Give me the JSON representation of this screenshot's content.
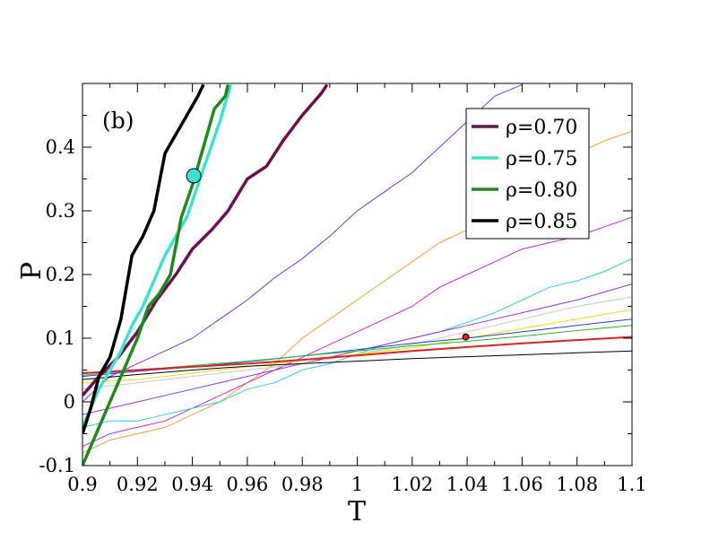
{
  "chart_data": {
    "type": "line",
    "panel_label": "(b)",
    "xlabel": "T",
    "ylabel": "P",
    "xlim": [
      0.9,
      1.1
    ],
    "ylim": [
      -0.1,
      0.5
    ],
    "x_ticks": [
      0.9,
      0.92,
      0.94,
      0.96,
      0.98,
      1.0,
      1.02,
      1.04,
      1.06,
      1.08,
      1.1
    ],
    "x_tick_labels": [
      "0.9",
      "0.92",
      "0.94",
      "0.96",
      "0.98",
      "1",
      "1.02",
      "1.04",
      "1.06",
      "1.08",
      "1.1"
    ],
    "y_ticks": [
      -0.1,
      0,
      0.1,
      0.2,
      0.3,
      0.4
    ],
    "y_tick_labels": [
      "-0.1",
      "0",
      "0.1",
      "0.2",
      "0.3",
      "0.4"
    ],
    "grid": false,
    "legend_position": "top-right",
    "series": [
      {
        "name": "ρ=0.70",
        "color": "#6b0f4f",
        "legend": true,
        "width": 3.5,
        "x": [
          0.9,
          0.906,
          0.913,
          0.92,
          0.927,
          0.934,
          0.94,
          0.947,
          0.953,
          0.96,
          0.967,
          0.973,
          0.98,
          0.987,
          0.989
        ],
        "y": [
          0.01,
          0.04,
          0.07,
          0.11,
          0.16,
          0.2,
          0.24,
          0.27,
          0.3,
          0.35,
          0.37,
          0.41,
          0.45,
          0.485,
          0.498
        ]
      },
      {
        "name": "ρ=0.75",
        "color": "#40e0d0",
        "legend": true,
        "width": 3.5,
        "x": [
          0.9,
          0.903,
          0.906,
          0.91,
          0.914,
          0.918,
          0.922,
          0.926,
          0.93,
          0.934,
          0.938,
          0.942,
          0.946,
          0.95,
          0.954
        ],
        "y": [
          -0.04,
          -0.01,
          0.02,
          0.05,
          0.08,
          0.12,
          0.15,
          0.19,
          0.23,
          0.26,
          0.29,
          0.34,
          0.39,
          0.44,
          0.498
        ]
      },
      {
        "name": "ρ=0.80",
        "color": "#1e8a1e",
        "legend": true,
        "width": 3.5,
        "x": [
          0.9,
          0.904,
          0.908,
          0.912,
          0.916,
          0.92,
          0.924,
          0.928,
          0.932,
          0.936,
          0.94,
          0.944,
          0.948,
          0.952,
          0.953
        ],
        "y": [
          -0.1,
          -0.06,
          -0.02,
          0.02,
          0.06,
          0.1,
          0.15,
          0.17,
          0.2,
          0.29,
          0.34,
          0.4,
          0.46,
          0.48,
          0.498
        ]
      },
      {
        "name": "ρ=0.85",
        "color": "#000000",
        "legend": true,
        "width": 3.5,
        "x": [
          0.9,
          0.903,
          0.906,
          0.91,
          0.914,
          0.918,
          0.922,
          0.926,
          0.93,
          0.934,
          0.938,
          0.942,
          0.944
        ],
        "y": [
          -0.05,
          -0.01,
          0.04,
          0.07,
          0.13,
          0.23,
          0.26,
          0.3,
          0.39,
          0.42,
          0.45,
          0.48,
          0.498
        ]
      },
      {
        "color": "#7b2fd4",
        "width": 1,
        "x": [
          0.9,
          0.905,
          0.91,
          0.915,
          0.92,
          0.925,
          0.93,
          0.94,
          0.95,
          0.96,
          0.97,
          0.98,
          0.99,
          1.0,
          1.01,
          1.02,
          1.03,
          1.04,
          1.05,
          1.06
        ],
        "y": [
          0.0,
          0.02,
          0.04,
          0.05,
          0.06,
          0.07,
          0.08,
          0.1,
          0.13,
          0.16,
          0.195,
          0.225,
          0.26,
          0.3,
          0.33,
          0.36,
          0.4,
          0.44,
          0.48,
          0.498
        ]
      },
      {
        "color": "#f0a020",
        "width": 1,
        "x": [
          0.9,
          0.91,
          0.92,
          0.93,
          0.94,
          0.95,
          0.96,
          0.97,
          0.98,
          0.99,
          1.0,
          1.01,
          1.02,
          1.03,
          1.04,
          1.05,
          1.06,
          1.07,
          1.08,
          1.09,
          1.1
        ],
        "y": [
          -0.08,
          -0.06,
          -0.05,
          -0.04,
          -0.02,
          0.0,
          0.03,
          0.06,
          0.1,
          0.13,
          0.16,
          0.19,
          0.22,
          0.25,
          0.27,
          0.3,
          0.33,
          0.36,
          0.39,
          0.41,
          0.425
        ]
      },
      {
        "color": "#d020d0",
        "width": 1,
        "x": [
          0.9,
          0.91,
          0.92,
          0.93,
          0.94,
          0.95,
          0.96,
          0.97,
          0.98,
          0.99,
          1.0,
          1.01,
          1.02,
          1.03,
          1.04,
          1.05,
          1.06,
          1.07,
          1.08,
          1.09,
          1.1
        ],
        "y": [
          -0.07,
          -0.05,
          -0.04,
          -0.03,
          -0.01,
          0.01,
          0.03,
          0.05,
          0.07,
          0.09,
          0.11,
          0.13,
          0.15,
          0.18,
          0.2,
          0.22,
          0.24,
          0.25,
          0.26,
          0.275,
          0.29
        ]
      },
      {
        "color": "#20d0e0",
        "width": 1,
        "x": [
          0.9,
          0.91,
          0.92,
          0.93,
          0.94,
          0.95,
          0.96,
          0.97,
          0.98,
          0.99,
          1.0,
          1.01,
          1.02,
          1.03,
          1.04,
          1.05,
          1.06,
          1.07,
          1.08,
          1.09,
          1.1
        ],
        "y": [
          -0.04,
          -0.03,
          -0.03,
          -0.02,
          -0.01,
          0.0,
          0.02,
          0.03,
          0.05,
          0.06,
          0.075,
          0.09,
          0.1,
          0.11,
          0.125,
          0.14,
          0.16,
          0.18,
          0.19,
          0.205,
          0.225
        ]
      },
      {
        "color": "#9b30d8",
        "width": 1,
        "x": [
          0.9,
          0.92,
          0.94,
          0.96,
          0.98,
          1.0,
          1.02,
          1.04,
          1.06,
          1.08,
          1.1
        ],
        "y": [
          -0.02,
          0.0,
          0.02,
          0.04,
          0.06,
          0.08,
          0.1,
          0.12,
          0.14,
          0.16,
          0.185
        ]
      },
      {
        "color": "#c8c8c8",
        "width": 1,
        "x": [
          0.9,
          0.92,
          0.94,
          0.96,
          0.98,
          1.0,
          1.02,
          1.04,
          1.06,
          1.08,
          1.1
        ],
        "y": [
          0.02,
          0.03,
          0.04,
          0.05,
          0.06,
          0.075,
          0.09,
          0.11,
          0.13,
          0.15,
          0.165
        ]
      },
      {
        "color": "#e8e000",
        "width": 1,
        "x": [
          0.9,
          0.92,
          0.94,
          0.96,
          0.98,
          1.0,
          1.02,
          1.04,
          1.06,
          1.08,
          1.1
        ],
        "y": [
          0.03,
          0.035,
          0.045,
          0.055,
          0.065,
          0.075,
          0.085,
          0.1,
          0.115,
          0.13,
          0.145
        ]
      },
      {
        "color": "#2040e0",
        "width": 1,
        "x": [
          0.9,
          0.92,
          0.94,
          0.96,
          0.98,
          1.0,
          1.02,
          1.04,
          1.06,
          1.08,
          1.1
        ],
        "y": [
          0.04,
          0.048,
          0.055,
          0.063,
          0.072,
          0.082,
          0.092,
          0.1,
          0.11,
          0.12,
          0.13
        ]
      },
      {
        "color": "#20c020",
        "width": 1,
        "x": [
          0.9,
          0.92,
          0.94,
          0.96,
          0.98,
          1.0,
          1.02,
          1.04,
          1.06,
          1.08,
          1.1
        ],
        "y": [
          0.042,
          0.05,
          0.057,
          0.064,
          0.072,
          0.08,
          0.088,
          0.095,
          0.103,
          0.112,
          0.12
        ]
      },
      {
        "color": "#e02020",
        "width": 2,
        "x": [
          0.9,
          0.92,
          0.94,
          0.96,
          0.98,
          1.0,
          1.02,
          1.04,
          1.06,
          1.08,
          1.1
        ],
        "y": [
          0.045,
          0.05,
          0.055,
          0.06,
          0.066,
          0.073,
          0.08,
          0.086,
          0.092,
          0.097,
          0.102
        ]
      },
      {
        "color": "#000000",
        "width": 1,
        "x": [
          0.9,
          0.92,
          0.94,
          0.96,
          0.98,
          1.0,
          1.02,
          1.04,
          1.06,
          1.08,
          1.1
        ],
        "y": [
          0.035,
          0.043,
          0.05,
          0.056,
          0.06,
          0.064,
          0.068,
          0.071,
          0.074,
          0.077,
          0.08
        ]
      }
    ],
    "markers": [
      {
        "x": 0.9405,
        "y": 0.355,
        "color": "#40e0d0",
        "size": "large"
      },
      {
        "x": 1.0395,
        "y": 0.102,
        "color": "#e02020",
        "size": "small"
      }
    ]
  }
}
